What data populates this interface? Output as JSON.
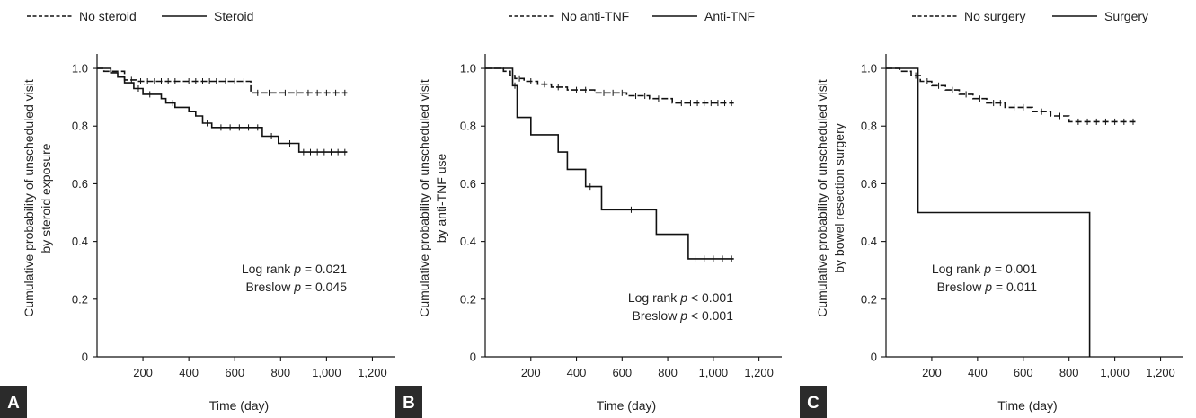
{
  "chart_data": [
    {
      "type": "line",
      "panel_label": "A",
      "xlabel": "Time (day)",
      "ylabel_lines": [
        "Cumulative probability of unscheduled visit",
        "by steroid exposure"
      ],
      "xlim": [
        0,
        1300
      ],
      "ylim": [
        0,
        1.05
      ],
      "x_ticks": [
        200,
        400,
        600,
        800,
        1000,
        1200
      ],
      "x_tick_labels": [
        "200",
        "400",
        "600",
        "800",
        "1,000",
        "1,200"
      ],
      "y_ticks": [
        0,
        0.2,
        0.4,
        0.6,
        0.8,
        1.0
      ],
      "y_tick_labels": [
        "0",
        "0.2",
        "0.4",
        "0.6",
        "0.8",
        "1.0"
      ],
      "legend_position": "top",
      "annotations": [
        {
          "prefix": "Log rank ",
          "p": "p",
          "suffix": " = 0.021"
        },
        {
          "prefix": "Breslow ",
          "p": "p",
          "suffix": " = 0.045"
        }
      ],
      "series": [
        {
          "name": "No steroid",
          "dash": "dashed",
          "steps": [
            [
              0,
              1.0
            ],
            [
              30,
              0.99
            ],
            [
              120,
              0.96
            ],
            [
              170,
              0.955
            ],
            [
              670,
              0.915
            ],
            [
              1090,
              0.915
            ]
          ],
          "censors": [
            150,
            190,
            220,
            250,
            280,
            310,
            340,
            370,
            400,
            430,
            460,
            490,
            520,
            560,
            600,
            640,
            700,
            750,
            820,
            870,
            920,
            960,
            1000,
            1040,
            1080
          ]
        },
        {
          "name": "Steroid",
          "dash": "solid",
          "steps": [
            [
              0,
              1.0
            ],
            [
              60,
              0.985
            ],
            [
              90,
              0.97
            ],
            [
              120,
              0.95
            ],
            [
              160,
              0.93
            ],
            [
              200,
              0.91
            ],
            [
              280,
              0.895
            ],
            [
              300,
              0.88
            ],
            [
              340,
              0.865
            ],
            [
              400,
              0.85
            ],
            [
              430,
              0.835
            ],
            [
              460,
              0.81
            ],
            [
              500,
              0.795
            ],
            [
              720,
              0.765
            ],
            [
              790,
              0.74
            ],
            [
              880,
              0.71
            ],
            [
              1090,
              0.71
            ]
          ],
          "censors": [
            180,
            230,
            330,
            370,
            480,
            540,
            580,
            620,
            660,
            700,
            760,
            840,
            900,
            930,
            960,
            990,
            1020,
            1050,
            1080
          ]
        }
      ]
    },
    {
      "type": "line",
      "panel_label": "B",
      "xlabel": "Time (day)",
      "ylabel_lines": [
        "Cumulative probability of unscheduled visit",
        "by anti-TNF use"
      ],
      "xlim": [
        0,
        1300
      ],
      "ylim": [
        0,
        1.05
      ],
      "x_ticks": [
        200,
        400,
        600,
        800,
        1000,
        1200
      ],
      "x_tick_labels": [
        "200",
        "400",
        "600",
        "800",
        "1,000",
        "1,200"
      ],
      "y_ticks": [
        0,
        0.2,
        0.4,
        0.6,
        0.8,
        1.0
      ],
      "y_tick_labels": [
        "0",
        "0.2",
        "0.4",
        "0.6",
        "0.8",
        "1.0"
      ],
      "legend_position": "top",
      "annotations": [
        {
          "prefix": "Log rank ",
          "p": "p",
          "suffix": " < 0.001"
        },
        {
          "prefix": "Breslow ",
          "p": "p",
          "suffix": " < 0.001"
        }
      ],
      "series": [
        {
          "name": "No anti-TNF",
          "dash": "dashed",
          "steps": [
            [
              0,
              1.0
            ],
            [
              80,
              0.99
            ],
            [
              110,
              0.975
            ],
            [
              130,
              0.965
            ],
            [
              170,
              0.955
            ],
            [
              230,
              0.945
            ],
            [
              290,
              0.935
            ],
            [
              360,
              0.925
            ],
            [
              480,
              0.915
            ],
            [
              620,
              0.905
            ],
            [
              720,
              0.895
            ],
            [
              820,
              0.88
            ],
            [
              1090,
              0.88
            ]
          ],
          "censors": [
            150,
            200,
            260,
            320,
            400,
            440,
            520,
            560,
            600,
            660,
            700,
            760,
            860,
            900,
            930,
            960,
            990,
            1020,
            1050,
            1080
          ]
        },
        {
          "name": "Anti-TNF",
          "dash": "solid",
          "steps": [
            [
              0,
              1.0
            ],
            [
              120,
              0.94
            ],
            [
              140,
              0.83
            ],
            [
              200,
              0.77
            ],
            [
              320,
              0.71
            ],
            [
              360,
              0.65
            ],
            [
              440,
              0.59
            ],
            [
              510,
              0.51
            ],
            [
              750,
              0.425
            ],
            [
              890,
              0.34
            ],
            [
              1090,
              0.34
            ]
          ],
          "censors": [
            130,
            460,
            640,
            920,
            960,
            1000,
            1040,
            1080
          ]
        }
      ]
    },
    {
      "type": "line",
      "panel_label": "C",
      "xlabel": "Time (day)",
      "ylabel_lines": [
        "Cumulative probability of unscheduled visit",
        "by bowel resection surgery"
      ],
      "xlim": [
        0,
        1300
      ],
      "ylim": [
        0,
        1.05
      ],
      "x_ticks": [
        200,
        400,
        600,
        800,
        1000,
        1200
      ],
      "x_tick_labels": [
        "200",
        "400",
        "600",
        "800",
        "1,000",
        "1,200"
      ],
      "y_ticks": [
        0,
        0.2,
        0.4,
        0.6,
        0.8,
        1.0
      ],
      "y_tick_labels": [
        "0",
        "0.2",
        "0.4",
        "0.6",
        "0.8",
        "1.0"
      ],
      "legend_position": "top",
      "annotations": [
        {
          "prefix": "Log rank ",
          "p": "p",
          "suffix": " = 0.001"
        },
        {
          "prefix": "Breslow ",
          "p": "p",
          "suffix": " = 0.011"
        }
      ],
      "series": [
        {
          "name": "No surgery",
          "dash": "dashed",
          "steps": [
            [
              0,
              1.0
            ],
            [
              60,
              0.99
            ],
            [
              110,
              0.975
            ],
            [
              150,
              0.955
            ],
            [
              200,
              0.94
            ],
            [
              260,
              0.925
            ],
            [
              320,
              0.91
            ],
            [
              380,
              0.895
            ],
            [
              440,
              0.88
            ],
            [
              520,
              0.865
            ],
            [
              640,
              0.85
            ],
            [
              720,
              0.835
            ],
            [
              800,
              0.815
            ],
            [
              1090,
              0.815
            ]
          ],
          "censors": [
            130,
            180,
            230,
            290,
            350,
            410,
            470,
            500,
            560,
            600,
            680,
            760,
            840,
            880,
            920,
            960,
            1000,
            1040,
            1080
          ]
        },
        {
          "name": "Surgery",
          "dash": "solid",
          "steps": [
            [
              0,
              1.0
            ],
            [
              140,
              0.5
            ],
            [
              890,
              0.0
            ]
          ],
          "censors": []
        }
      ]
    }
  ]
}
